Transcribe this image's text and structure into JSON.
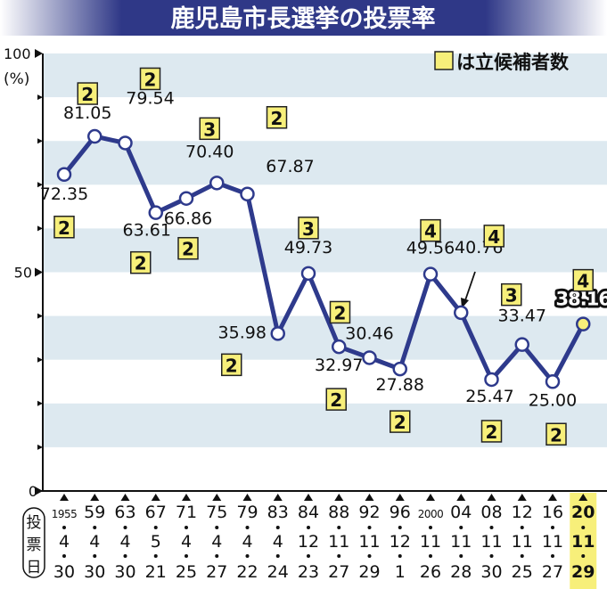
{
  "title": "鹿児島市長選挙の投票率",
  "legend_label": "は立候補者数",
  "ylabel": "(%)",
  "date_label_chars": [
    "投",
    "票",
    "日"
  ],
  "colors": {
    "line": "#2e3a8c",
    "box_fill": "#f7ef7a",
    "stripe": "#dde9f0",
    "title_bg": "#2f3887",
    "highlight_col": "#f7ef7a"
  },
  "chart_data": {
    "type": "line",
    "title": "鹿児島市長選挙の投票率",
    "ylabel": "(%)",
    "ylim": [
      0,
      100
    ],
    "yticks": [
      "0",
      "50",
      "100"
    ],
    "x_years": [
      "1955",
      "59",
      "63",
      "67",
      "71",
      "75",
      "79",
      "83",
      "84",
      "88",
      "92",
      "96",
      "2000",
      "04",
      "08",
      "12",
      "16",
      "20"
    ],
    "x_months": [
      "4",
      "4",
      "4",
      "5",
      "4",
      "4",
      "4",
      "4",
      "12",
      "11",
      "11",
      "12",
      "11",
      "11",
      "11",
      "11",
      "11",
      "11"
    ],
    "x_days": [
      "30",
      "30",
      "30",
      "21",
      "25",
      "27",
      "22",
      "24",
      "23",
      "27",
      "29",
      "1",
      "26",
      "28",
      "30",
      "25",
      "27",
      "29"
    ],
    "values": [
      72.35,
      81.05,
      79.54,
      63.61,
      66.86,
      70.4,
      67.87,
      35.98,
      49.73,
      32.97,
      30.46,
      27.88,
      49.56,
      40.76,
      25.47,
      33.47,
      25.0,
      38.16
    ],
    "value_labels": [
      "72.35",
      "81.05",
      "79.54",
      "63.61",
      "66.86",
      "70.40",
      "67.87",
      "35.98",
      "49.73",
      "32.97",
      "30.46",
      "27.88",
      "49.56",
      "40.76",
      "25.47",
      "33.47",
      "25.00",
      "38.16"
    ],
    "candidates": [
      "2",
      "2",
      "2",
      "2",
      "2",
      "3",
      "2",
      "2",
      "3",
      "2",
      "2",
      "2",
      "4",
      "4",
      "2",
      "3",
      "2",
      "4"
    ],
    "highlight_index": 17
  }
}
